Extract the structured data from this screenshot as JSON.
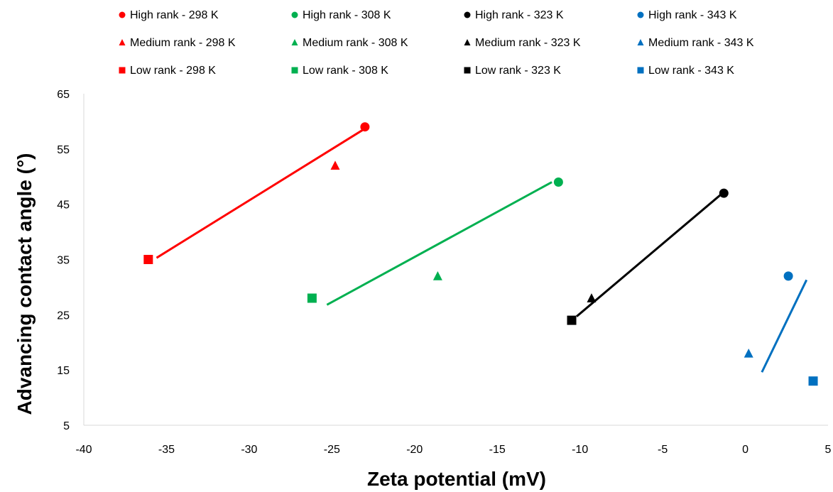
{
  "chart_data": {
    "type": "scatter",
    "xlabel": "Zeta potential (mV)",
    "ylabel": "Advancing contact angle (°)",
    "xlim": [
      -40,
      5
    ],
    "ylim": [
      5,
      65
    ],
    "x_ticks": [
      "-40",
      "-35",
      "-30",
      "-25",
      "-20",
      "-15",
      "-10",
      "-5",
      "0",
      "5"
    ],
    "y_ticks": [
      "5",
      "15",
      "25",
      "35",
      "45",
      "55",
      "65"
    ],
    "grid": false,
    "legend_position": "top",
    "series": [
      {
        "name": "High rank - 298 K",
        "color": "#ff0000",
        "marker": "circle",
        "points": [
          [
            -23.0,
            59
          ]
        ]
      },
      {
        "name": "High rank - 308 K",
        "color": "#00b050",
        "marker": "circle",
        "points": [
          [
            -11.3,
            49
          ]
        ]
      },
      {
        "name": "High rank - 323 K",
        "color": "#000000",
        "marker": "circle",
        "points": [
          [
            -1.3,
            47
          ]
        ]
      },
      {
        "name": "High rank - 343 K",
        "color": "#0070c0",
        "marker": "circle",
        "points": [
          [
            2.6,
            32
          ]
        ]
      },
      {
        "name": "Medium rank - 298 K",
        "color": "#ff0000",
        "marker": "triangle",
        "points": [
          [
            -24.8,
            52
          ]
        ]
      },
      {
        "name": "Medium rank - 308 K",
        "color": "#00b050",
        "marker": "triangle",
        "points": [
          [
            -18.6,
            32
          ]
        ]
      },
      {
        "name": "Medium rank - 323 K",
        "color": "#000000",
        "marker": "triangle",
        "points": [
          [
            -9.3,
            28
          ]
        ]
      },
      {
        "name": "Medium rank - 343 K",
        "color": "#0070c0",
        "marker": "triangle",
        "points": [
          [
            0.2,
            18
          ]
        ]
      },
      {
        "name": "Low rank - 298 K",
        "color": "#ff0000",
        "marker": "square",
        "points": [
          [
            -36.1,
            35
          ]
        ]
      },
      {
        "name": "Low rank - 308 K",
        "color": "#00b050",
        "marker": "square",
        "points": [
          [
            -26.2,
            28
          ]
        ]
      },
      {
        "name": "Low rank - 323 K",
        "color": "#000000",
        "marker": "square",
        "points": [
          [
            -10.5,
            24
          ]
        ]
      },
      {
        "name": "Low rank - 343 K",
        "color": "#0070c0",
        "marker": "square",
        "points": [
          [
            4.1,
            13
          ]
        ]
      }
    ],
    "trendlines": [
      {
        "color": "#ff0000",
        "x": [
          -35.6,
          -23.1
        ],
        "y": [
          35.3,
          58.5
        ]
      },
      {
        "color": "#00b050",
        "x": [
          -25.3,
          -11.7
        ],
        "y": [
          26.8,
          49.0
        ]
      },
      {
        "color": "#000000",
        "x": [
          -10.2,
          -1.5
        ],
        "y": [
          24.7,
          46.7
        ]
      },
      {
        "color": "#0070c0",
        "x": [
          1.0,
          3.7
        ],
        "y": [
          14.6,
          31.3
        ]
      }
    ]
  }
}
